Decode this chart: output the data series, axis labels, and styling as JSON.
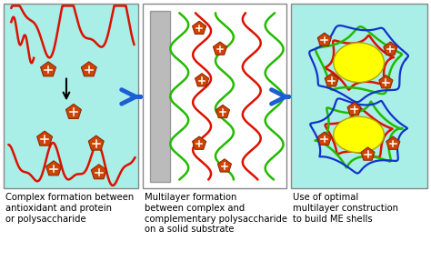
{
  "bg_color": "#ffffff",
  "panel1_bg": "#aaeee8",
  "panel2_bg": "#ffffff",
  "panel3_bg": "#aaeee8",
  "arrow_color": "#1a5fd4",
  "red_line_color": "#dd1100",
  "green_line_color": "#22bb00",
  "blue_line_color": "#1133cc",
  "gray_rect_color": "#bbbbbb",
  "yellow_ellipse_color": "#ffff00",
  "caption1": "Complex formation between\nantioxidant and protein\nor polysaccharide",
  "caption2": "Multilayer formation\nbetween complex and\ncomplementary polysaccharide\non a solid substrate",
  "caption3": "Use of optimal\nmultilayer construction\nto build ME shells",
  "caption_fontsize": 7.2
}
